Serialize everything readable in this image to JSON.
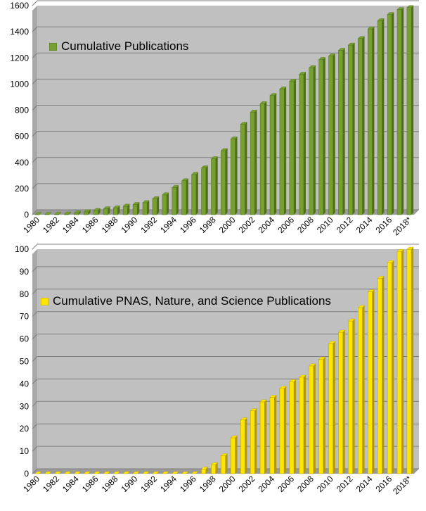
{
  "chart_data": [
    {
      "type": "bar",
      "title": "",
      "xlabel": "",
      "ylabel": "",
      "ylim": [
        0,
        1600
      ],
      "yticks": [
        0,
        200,
        400,
        600,
        800,
        1000,
        1200,
        1400,
        1600
      ],
      "grid": true,
      "legend_placement": "top-left",
      "colors": {
        "bar": "#77a030",
        "bar_dark": "#4f7018",
        "plot_bg": "#c0c0c0",
        "gridline": "#7f7f7f"
      },
      "categories": [
        "1980",
        "1981",
        "1982",
        "1983",
        "1984",
        "1985",
        "1986",
        "1987",
        "1988",
        "1989",
        "1990",
        "1991",
        "1992",
        "1993",
        "1994",
        "1995",
        "1996",
        "1997",
        "1998",
        "1999",
        "2000",
        "2001",
        "2002",
        "2003",
        "2004",
        "2005",
        "2006",
        "2007",
        "2008",
        "2009",
        "2010",
        "2011",
        "2012",
        "2013",
        "2014",
        "2015",
        "2016",
        "2017",
        "2018*"
      ],
      "tick_labels": [
        "1980",
        "1982",
        "1984",
        "1986",
        "1988",
        "1990",
        "1992",
        "1994",
        "1996",
        "1998",
        "2000",
        "2002",
        "2004",
        "2006",
        "2008",
        "2010",
        "2012",
        "2014",
        "2016",
        "2018*"
      ],
      "series": [
        {
          "name": "Cumulative Publications",
          "values": [
            1,
            2,
            3,
            5,
            12,
            22,
            32,
            45,
            52,
            65,
            78,
            92,
            122,
            152,
            208,
            260,
            308,
            358,
            428,
            490,
            580,
            692,
            785,
            850,
            912,
            962,
            1022,
            1075,
            1125,
            1188,
            1215,
            1258,
            1298,
            1348,
            1422,
            1485,
            1532,
            1570,
            1585
          ]
        }
      ]
    },
    {
      "type": "bar",
      "title": "",
      "xlabel": "",
      "ylabel": "",
      "ylim": [
        0,
        100
      ],
      "yticks": [
        0,
        10,
        20,
        30,
        40,
        50,
        60,
        70,
        80,
        90,
        100
      ],
      "grid": true,
      "legend_placement": "top-left",
      "colors": {
        "bar": "#ffe600",
        "bar_dark": "#b39a00",
        "plot_bg": "#c0c0c0",
        "gridline": "#7f7f7f"
      },
      "categories": [
        "1980",
        "1981",
        "1982",
        "1983",
        "1984",
        "1985",
        "1986",
        "1987",
        "1988",
        "1989",
        "1990",
        "1991",
        "1992",
        "1993",
        "1994",
        "1995",
        "1996",
        "1997",
        "1998",
        "1999",
        "2000",
        "2001",
        "2002",
        "2003",
        "2004",
        "2005",
        "2006",
        "2007",
        "2008",
        "2009",
        "2010",
        "2011",
        "2012",
        "2013",
        "2014",
        "2015",
        "2016",
        "2017",
        "2018*"
      ],
      "tick_labels": [
        "1980",
        "1982",
        "1984",
        "1986",
        "1988",
        "1990",
        "1992",
        "1994",
        "1996",
        "1998",
        "2000",
        "2002",
        "2004",
        "2006",
        "2008",
        "2010",
        "2012",
        "2014",
        "2016",
        "2018*"
      ],
      "series": [
        {
          "name": "Cumulative PNAS, Nature, and Science Publications",
          "values": [
            0,
            0,
            0,
            0,
            0,
            0,
            0,
            0,
            0,
            0,
            0,
            0,
            0,
            0,
            0,
            0,
            0,
            2,
            4,
            8,
            16,
            24,
            28,
            32,
            34,
            38,
            41,
            43,
            48,
            51,
            58,
            63,
            68,
            74,
            81,
            87,
            94,
            99,
            100
          ]
        }
      ]
    }
  ]
}
